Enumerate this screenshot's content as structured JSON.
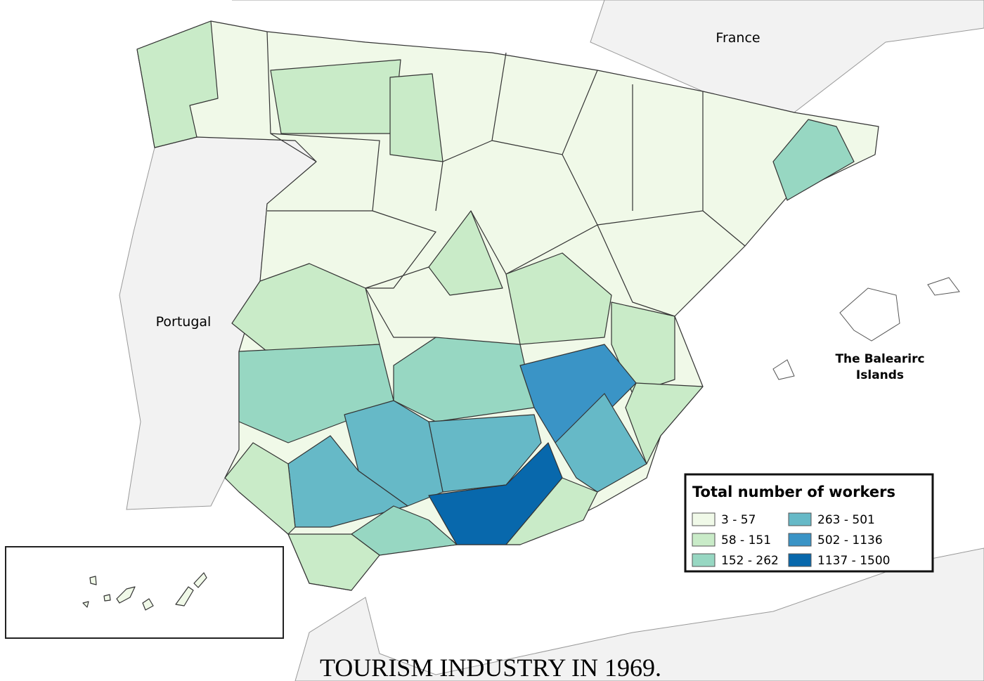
{
  "map": {
    "labels": {
      "france": "France",
      "portugal": "Portugal",
      "balearic": [
        "The Balearirc",
        "Islands"
      ]
    },
    "legend": {
      "title": "Total number of workers",
      "items": [
        {
          "label": "3 - 57",
          "color": "#f0f9e8"
        },
        {
          "label": "58 - 151",
          "color": "#c9ebc8"
        },
        {
          "label": "152 - 262",
          "color": "#97d7c2"
        },
        {
          "label": "263 - 501",
          "color": "#66b9c7"
        },
        {
          "label": "502 - 1136",
          "color": "#3a94c6"
        },
        {
          "label": "1137 - 1500",
          "color": "#0868ac"
        }
      ]
    },
    "caption": "TOURISM INDUSTRY IN 1969."
  }
}
